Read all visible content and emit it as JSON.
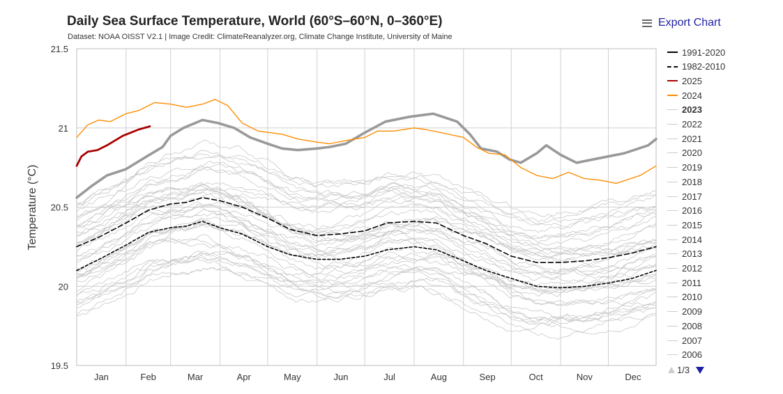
{
  "title": "Daily Sea Surface Temperature, World (60°S–60°N, 0–360°E)",
  "subtitle": "Dataset: NOAA OISST V2.1 | Image Credit: ClimateReanalyzer.org, Climate Change Institute, University of Maine",
  "export_label": "Export Chart",
  "export_icon": "menu-icon",
  "pager": {
    "text": "1/3",
    "prev_icon": "triangle-up-icon",
    "next_icon": "triangle-down-icon"
  },
  "legend": [
    {
      "label": "1991-2020",
      "color": "#000000",
      "style": "solid",
      "bold": false
    },
    {
      "label": "1982-2010",
      "color": "#000000",
      "style": "dashed",
      "bold": false
    },
    {
      "label": "2025",
      "color": "#aa0000",
      "style": "solid",
      "bold": false
    },
    {
      "label": "2024",
      "color": "#ff8c00",
      "style": "solid",
      "bold": false
    },
    {
      "label": "2023",
      "color": "#cccccc",
      "style": "solid",
      "bold": true
    },
    {
      "label": "2022",
      "color": "#cccccc",
      "style": "solid",
      "bold": false
    },
    {
      "label": "2021",
      "color": "#cccccc",
      "style": "solid",
      "bold": false
    },
    {
      "label": "2020",
      "color": "#cccccc",
      "style": "solid",
      "bold": false
    },
    {
      "label": "2019",
      "color": "#cccccc",
      "style": "solid",
      "bold": false
    },
    {
      "label": "2018",
      "color": "#cccccc",
      "style": "solid",
      "bold": false
    },
    {
      "label": "2017",
      "color": "#cccccc",
      "style": "solid",
      "bold": false
    },
    {
      "label": "2016",
      "color": "#cccccc",
      "style": "solid",
      "bold": false
    },
    {
      "label": "2015",
      "color": "#cccccc",
      "style": "solid",
      "bold": false
    },
    {
      "label": "2014",
      "color": "#cccccc",
      "style": "solid",
      "bold": false
    },
    {
      "label": "2013",
      "color": "#cccccc",
      "style": "solid",
      "bold": false
    },
    {
      "label": "2012",
      "color": "#cccccc",
      "style": "solid",
      "bold": false
    },
    {
      "label": "2011",
      "color": "#cccccc",
      "style": "solid",
      "bold": false
    },
    {
      "label": "2010",
      "color": "#cccccc",
      "style": "solid",
      "bold": false
    },
    {
      "label": "2009",
      "color": "#cccccc",
      "style": "solid",
      "bold": false
    },
    {
      "label": "2008",
      "color": "#cccccc",
      "style": "solid",
      "bold": false
    },
    {
      "label": "2007",
      "color": "#cccccc",
      "style": "solid",
      "bold": false
    },
    {
      "label": "2006",
      "color": "#cccccc",
      "style": "solid",
      "bold": false
    }
  ],
  "chart_data": {
    "type": "line",
    "ylabel": "Temperature (°C)",
    "xlabel": "",
    "ylim": [
      19.5,
      21.5
    ],
    "yticks": [
      19.5,
      20,
      20.5,
      21,
      21.5
    ],
    "xlim": [
      1,
      365
    ],
    "xtick_labels": [
      "Jan",
      "Feb",
      "Mar",
      "Apr",
      "May",
      "Jun",
      "Jul",
      "Aug",
      "Sep",
      "Oct",
      "Nov",
      "Dec"
    ],
    "month_start_days": [
      1,
      32,
      60,
      91,
      121,
      152,
      182,
      213,
      244,
      274,
      305,
      335
    ],
    "grid": true,
    "legend_position": "right",
    "series": [
      {
        "name": "1991-2020",
        "color": "#000000",
        "dash": "dashed-long",
        "x": [
          1,
          15,
          32,
          46,
          60,
          70,
          80,
          91,
          105,
          121,
          135,
          152,
          166,
          182,
          196,
          213,
          227,
          244,
          258,
          274,
          290,
          305,
          320,
          335,
          350,
          365
        ],
        "y": [
          20.25,
          20.31,
          20.4,
          20.48,
          20.52,
          20.53,
          20.56,
          20.54,
          20.5,
          20.43,
          20.36,
          20.32,
          20.33,
          20.35,
          20.4,
          20.41,
          20.4,
          20.32,
          20.27,
          20.19,
          20.15,
          20.15,
          20.16,
          20.18,
          20.21,
          20.25
        ]
      },
      {
        "name": "1982-2010",
        "color": "#000000",
        "dash": "dashed",
        "x": [
          1,
          15,
          32,
          46,
          60,
          70,
          80,
          91,
          105,
          121,
          135,
          152,
          166,
          182,
          196,
          213,
          227,
          244,
          258,
          274,
          290,
          305,
          320,
          335,
          350,
          365
        ],
        "y": [
          20.1,
          20.17,
          20.26,
          20.34,
          20.37,
          20.38,
          20.41,
          20.37,
          20.33,
          20.25,
          20.2,
          20.17,
          20.17,
          20.19,
          20.23,
          20.25,
          20.23,
          20.16,
          20.1,
          20.05,
          20.0,
          19.99,
          20.0,
          20.02,
          20.05,
          20.1
        ]
      },
      {
        "name": "2025",
        "color": "#aa0000",
        "dash": "solid",
        "x": [
          1,
          4,
          8,
          14,
          20,
          25,
          30,
          35,
          40,
          47
        ],
        "y": [
          20.76,
          20.82,
          20.85,
          20.86,
          20.89,
          20.92,
          20.95,
          20.97,
          20.99,
          21.01
        ]
      },
      {
        "name": "2024",
        "color": "#ff8c00",
        "dash": "solid",
        "x": [
          1,
          8,
          15,
          22,
          32,
          40,
          50,
          60,
          70,
          80,
          88,
          96,
          105,
          115,
          130,
          140,
          152,
          160,
          170,
          182,
          190,
          200,
          213,
          220,
          230,
          244,
          252,
          260,
          270,
          280,
          290,
          300,
          310,
          320,
          330,
          340,
          355,
          365
        ],
        "y": [
          20.94,
          21.02,
          21.05,
          21.04,
          21.09,
          21.11,
          21.16,
          21.15,
          21.13,
          21.15,
          21.18,
          21.14,
          21.03,
          20.98,
          20.96,
          20.93,
          20.91,
          20.9,
          20.92,
          20.94,
          20.98,
          20.98,
          21.0,
          20.99,
          20.97,
          20.94,
          20.88,
          20.84,
          20.83,
          20.75,
          20.7,
          20.68,
          20.72,
          20.68,
          20.67,
          20.65,
          20.7,
          20.76
        ]
      },
      {
        "name": "2023",
        "color": "#999999",
        "dash": "solid",
        "x": [
          1,
          10,
          20,
          32,
          45,
          55,
          60,
          68,
          80,
          90,
          100,
          110,
          121,
          130,
          140,
          152,
          160,
          170,
          182,
          195,
          210,
          225,
          240,
          248,
          255,
          265,
          273,
          280,
          290,
          296,
          305,
          315,
          325,
          335,
          345,
          360,
          365
        ],
        "y": [
          20.56,
          20.63,
          20.7,
          20.74,
          20.82,
          20.88,
          20.95,
          21.0,
          21.05,
          21.03,
          21.0,
          20.94,
          20.9,
          20.87,
          20.86,
          20.87,
          20.88,
          20.9,
          20.97,
          21.04,
          21.07,
          21.09,
          21.04,
          20.96,
          20.87,
          20.85,
          20.8,
          20.78,
          20.84,
          20.89,
          20.83,
          20.78,
          20.8,
          20.82,
          20.84,
          20.89,
          20.93
        ]
      }
    ],
    "other_years": [
      "2022",
      "2021",
      "2020",
      "2019",
      "2018",
      "2017",
      "2016",
      "2015",
      "2014",
      "2013",
      "2012",
      "2011",
      "2010",
      "2009",
      "2008",
      "2007",
      "2006"
    ]
  }
}
